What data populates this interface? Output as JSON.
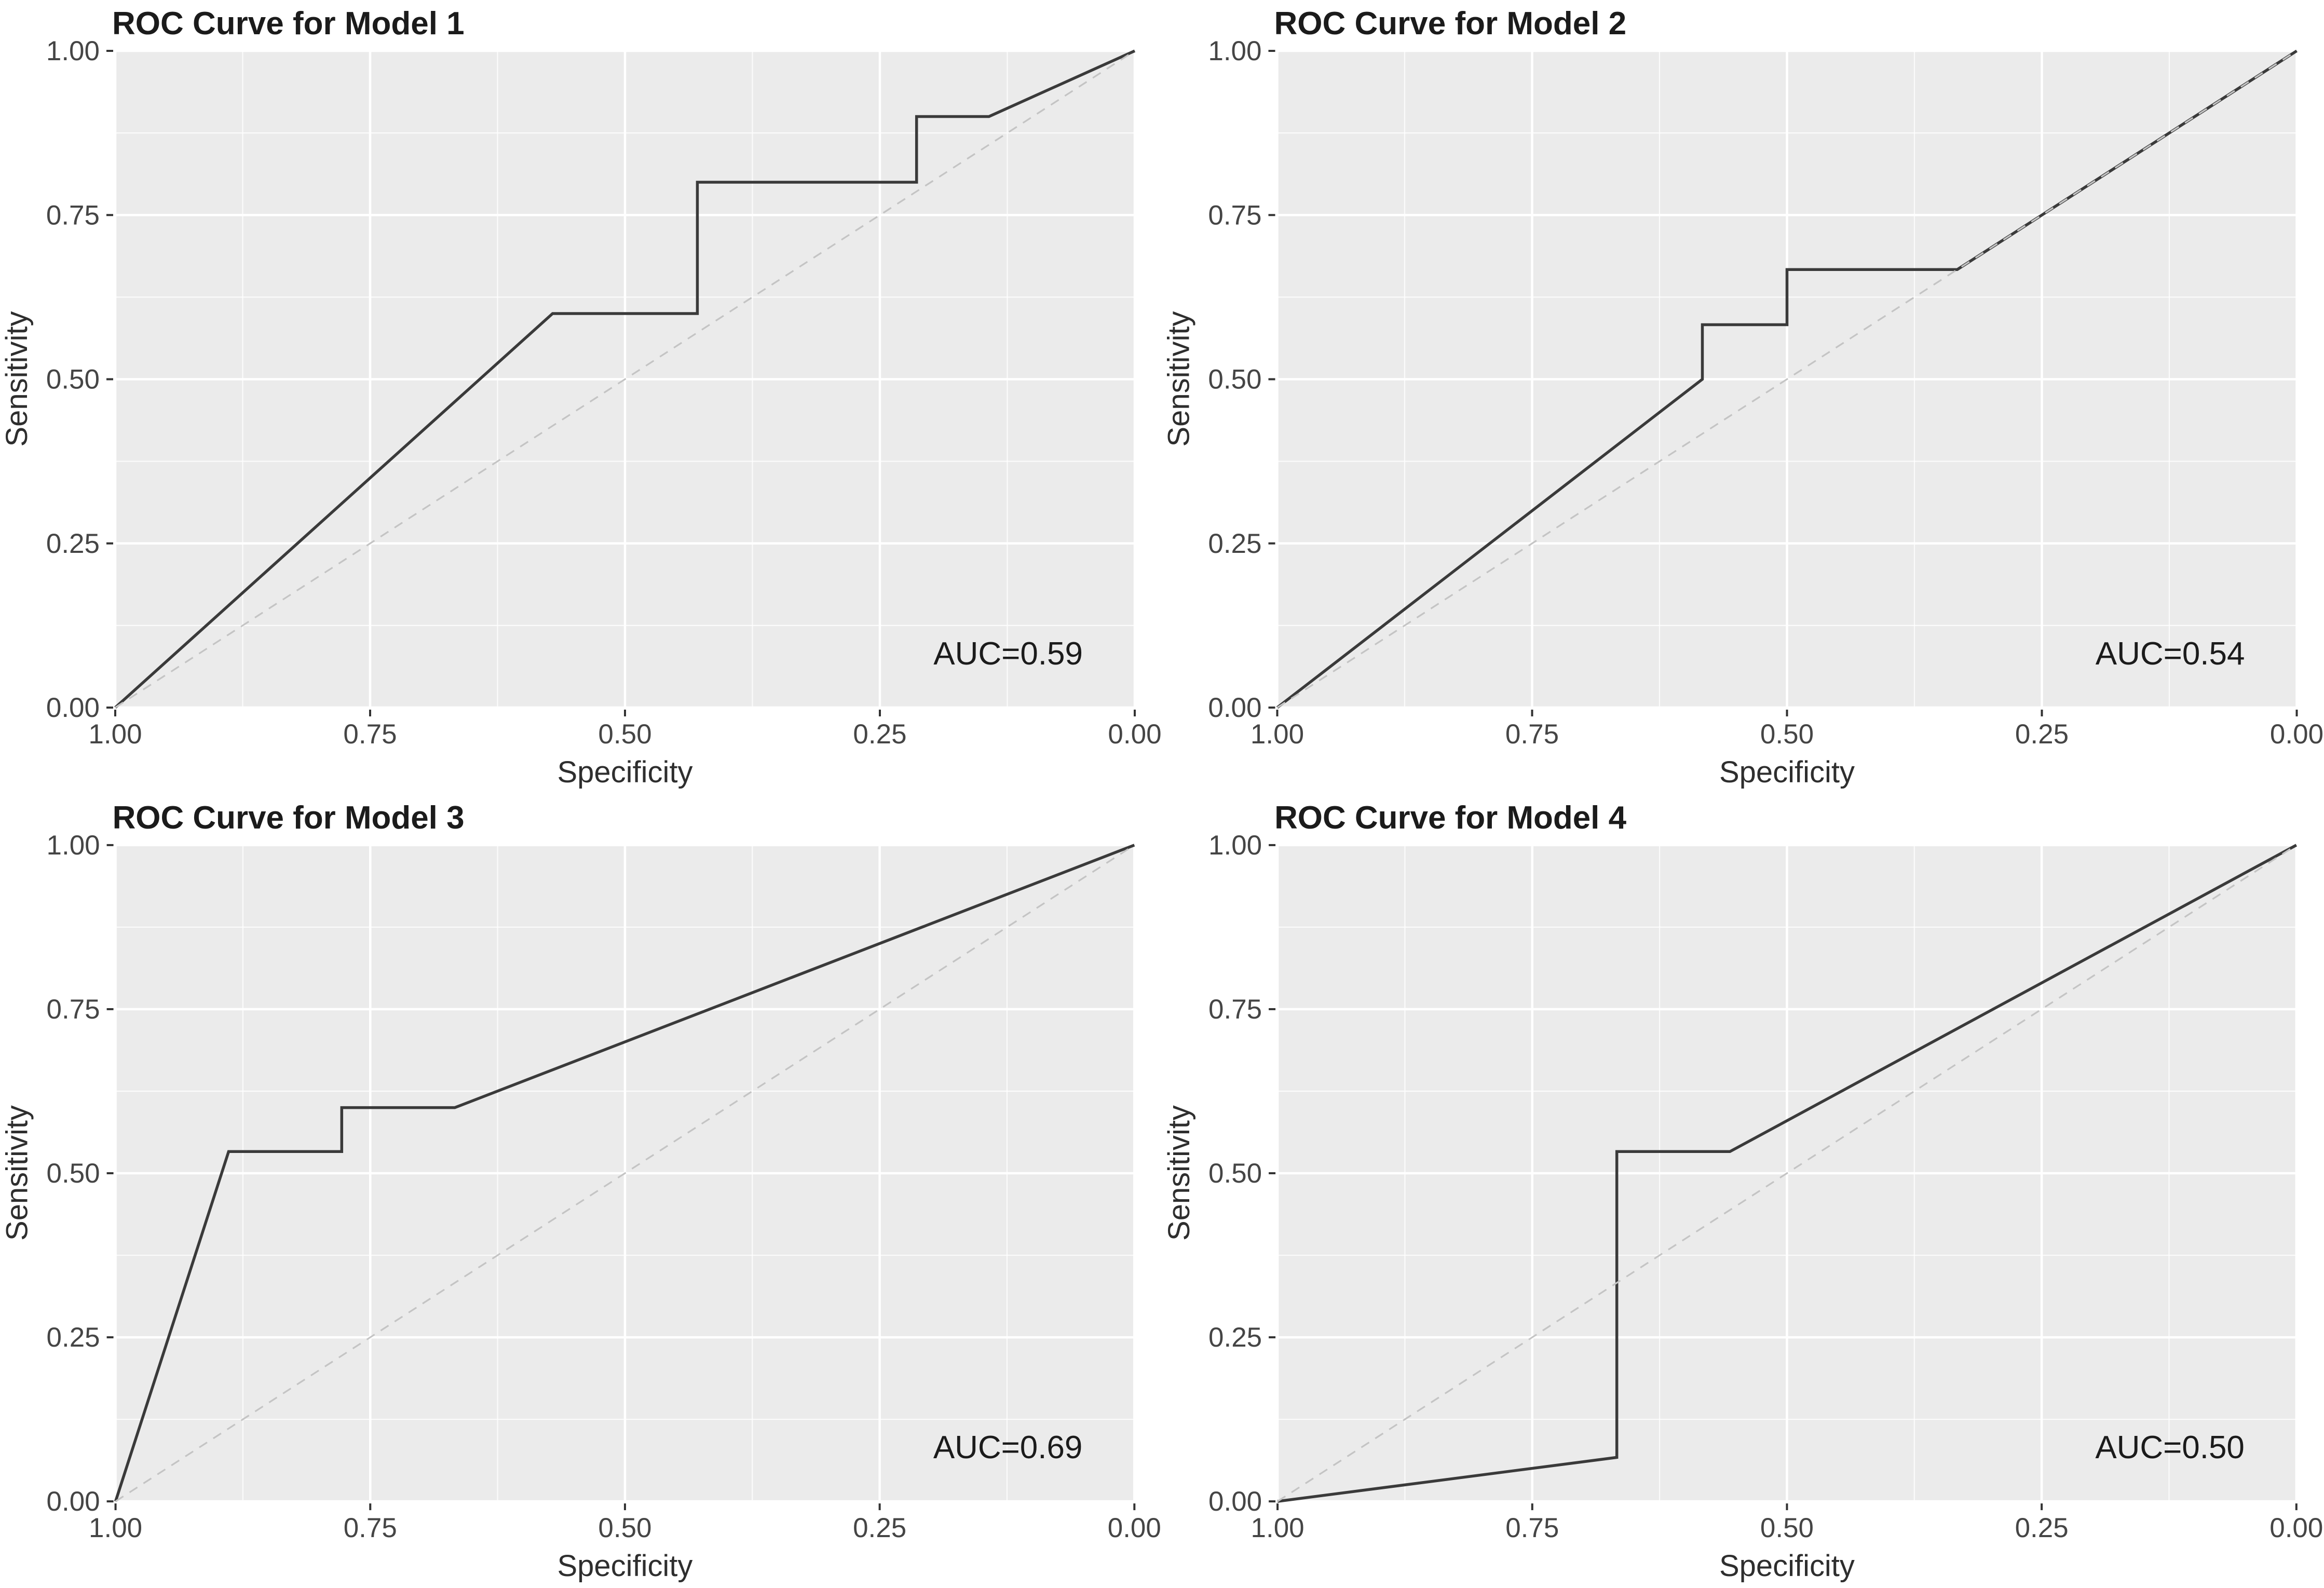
{
  "styles": {
    "page_bg": "#ffffff",
    "panel_bg": "#ebebeb",
    "grid_major": "#ffffff",
    "grid_minor": "#ffffff",
    "roc_line": "#3a3a3a",
    "reference_line": "#c4c4c4",
    "tick_mark": "#333333",
    "tick_label": "#454545",
    "title": "#1b1b1b",
    "axis_title": "#2e2e2e"
  },
  "chart_data": [
    {
      "type": "line",
      "title": "ROC Curve for Model 1",
      "xlabel": "Specificity",
      "ylabel": "Sensitivity",
      "auc_label": "AUC=0.59",
      "auc": 0.59,
      "x_reversed": true,
      "xlim": [
        1.0,
        0.0
      ],
      "ylim": [
        0.0,
        1.0
      ],
      "grid": true,
      "legend": "none",
      "x_ticks": [
        {
          "value": 1.0,
          "label": "1.00"
        },
        {
          "value": 0.75,
          "label": "0.75"
        },
        {
          "value": 0.5,
          "label": "0.50"
        },
        {
          "value": 0.25,
          "label": "0.25"
        },
        {
          "value": 0.0,
          "label": "0.00"
        }
      ],
      "y_ticks": [
        {
          "value": 0.0,
          "label": "0.00"
        },
        {
          "value": 0.25,
          "label": "0.25"
        },
        {
          "value": 0.5,
          "label": "0.50"
        },
        {
          "value": 0.75,
          "label": "0.75"
        },
        {
          "value": 1.0,
          "label": "1.00"
        }
      ],
      "minor_breaks": [
        0.125,
        0.375,
        0.625,
        0.875
      ],
      "reference_line": {
        "from_spec_sens": [
          1.0,
          0.0
        ],
        "to_spec_sens": [
          0.0,
          1.0
        ],
        "style": "dashed"
      },
      "roc_points_spec_sens": [
        [
          1.0,
          0.0
        ],
        [
          0.571,
          0.6
        ],
        [
          0.429,
          0.6
        ],
        [
          0.429,
          0.8
        ],
        [
          0.214,
          0.8
        ],
        [
          0.214,
          0.9
        ],
        [
          0.143,
          0.9
        ],
        [
          0.0,
          1.0
        ]
      ]
    },
    {
      "type": "line",
      "title": "ROC Curve for Model 2",
      "xlabel": "Specificity",
      "ylabel": "Sensitivity",
      "auc_label": "AUC=0.54",
      "auc": 0.54,
      "x_reversed": true,
      "xlim": [
        1.0,
        0.0
      ],
      "ylim": [
        0.0,
        1.0
      ],
      "grid": true,
      "legend": "none",
      "x_ticks": [
        {
          "value": 1.0,
          "label": "1.00"
        },
        {
          "value": 0.75,
          "label": "0.75"
        },
        {
          "value": 0.5,
          "label": "0.50"
        },
        {
          "value": 0.25,
          "label": "0.25"
        },
        {
          "value": 0.0,
          "label": "0.00"
        }
      ],
      "y_ticks": [
        {
          "value": 0.0,
          "label": "0.00"
        },
        {
          "value": 0.25,
          "label": "0.25"
        },
        {
          "value": 0.5,
          "label": "0.50"
        },
        {
          "value": 0.75,
          "label": "0.75"
        },
        {
          "value": 1.0,
          "label": "1.00"
        }
      ],
      "minor_breaks": [
        0.125,
        0.375,
        0.625,
        0.875
      ],
      "reference_line": {
        "from_spec_sens": [
          1.0,
          0.0
        ],
        "to_spec_sens": [
          0.0,
          1.0
        ],
        "style": "dashed"
      },
      "roc_points_spec_sens": [
        [
          1.0,
          0.0
        ],
        [
          0.583,
          0.5
        ],
        [
          0.583,
          0.583
        ],
        [
          0.5,
          0.583
        ],
        [
          0.5,
          0.667
        ],
        [
          0.333,
          0.667
        ],
        [
          0.0,
          1.0
        ]
      ]
    },
    {
      "type": "line",
      "title": "ROC Curve for Model 3",
      "xlabel": "Specificity",
      "ylabel": "Sensitivity",
      "auc_label": "AUC=0.69",
      "auc": 0.69,
      "x_reversed": true,
      "xlim": [
        1.0,
        0.0
      ],
      "ylim": [
        0.0,
        1.0
      ],
      "grid": true,
      "legend": "none",
      "x_ticks": [
        {
          "value": 1.0,
          "label": "1.00"
        },
        {
          "value": 0.75,
          "label": "0.75"
        },
        {
          "value": 0.5,
          "label": "0.50"
        },
        {
          "value": 0.25,
          "label": "0.25"
        },
        {
          "value": 0.0,
          "label": "0.00"
        }
      ],
      "y_ticks": [
        {
          "value": 0.0,
          "label": "0.00"
        },
        {
          "value": 0.25,
          "label": "0.25"
        },
        {
          "value": 0.5,
          "label": "0.50"
        },
        {
          "value": 0.75,
          "label": "0.75"
        },
        {
          "value": 1.0,
          "label": "1.00"
        }
      ],
      "minor_breaks": [
        0.125,
        0.375,
        0.625,
        0.875
      ],
      "reference_line": {
        "from_spec_sens": [
          1.0,
          0.0
        ],
        "to_spec_sens": [
          0.0,
          1.0
        ],
        "style": "dashed"
      },
      "roc_points_spec_sens": [
        [
          1.0,
          0.0
        ],
        [
          0.889,
          0.533
        ],
        [
          0.778,
          0.533
        ],
        [
          0.778,
          0.6
        ],
        [
          0.667,
          0.6
        ],
        [
          0.0,
          1.0
        ]
      ]
    },
    {
      "type": "line",
      "title": "ROC Curve for Model 4",
      "xlabel": "Specificity",
      "ylabel": "Sensitivity",
      "auc_label": "AUC=0.50",
      "auc": 0.5,
      "x_reversed": true,
      "xlim": [
        1.0,
        0.0
      ],
      "ylim": [
        0.0,
        1.0
      ],
      "grid": true,
      "legend": "none",
      "x_ticks": [
        {
          "value": 1.0,
          "label": "1.00"
        },
        {
          "value": 0.75,
          "label": "0.75"
        },
        {
          "value": 0.5,
          "label": "0.50"
        },
        {
          "value": 0.25,
          "label": "0.25"
        },
        {
          "value": 0.0,
          "label": "0.00"
        }
      ],
      "y_ticks": [
        {
          "value": 0.0,
          "label": "0.00"
        },
        {
          "value": 0.25,
          "label": "0.25"
        },
        {
          "value": 0.5,
          "label": "0.50"
        },
        {
          "value": 0.75,
          "label": "0.75"
        },
        {
          "value": 1.0,
          "label": "1.00"
        }
      ],
      "minor_breaks": [
        0.125,
        0.375,
        0.625,
        0.875
      ],
      "reference_line": {
        "from_spec_sens": [
          1.0,
          0.0
        ],
        "to_spec_sens": [
          0.0,
          1.0
        ],
        "style": "dashed"
      },
      "roc_points_spec_sens": [
        [
          1.0,
          0.0
        ],
        [
          0.667,
          0.067
        ],
        [
          0.667,
          0.533
        ],
        [
          0.556,
          0.533
        ],
        [
          0.0,
          1.0
        ]
      ]
    }
  ]
}
